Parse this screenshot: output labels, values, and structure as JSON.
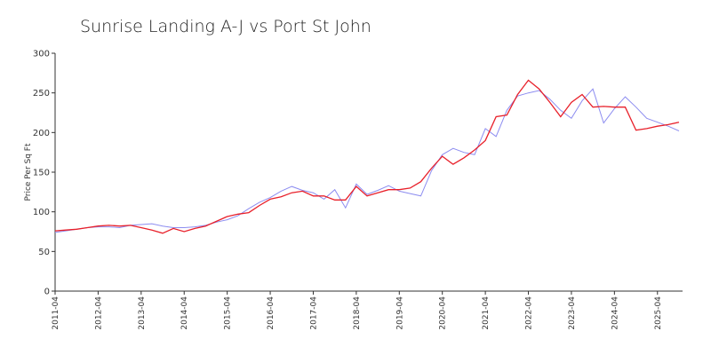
{
  "chart_data": {
    "type": "line",
    "title": "Sunrise Landing A-J vs Port St John",
    "y_label": "Price Per Sq Ft",
    "x": [
      "2011-04",
      "2011-07",
      "2011-10",
      "2012-01",
      "2012-04",
      "2012-07",
      "2012-10",
      "2013-01",
      "2013-04",
      "2013-07",
      "2013-10",
      "2014-01",
      "2014-04",
      "2014-07",
      "2014-10",
      "2015-01",
      "2015-04",
      "2015-07",
      "2015-10",
      "2016-01",
      "2016-04",
      "2016-07",
      "2016-10",
      "2017-01",
      "2017-04",
      "2017-07",
      "2017-10",
      "2018-01",
      "2018-04",
      "2018-07",
      "2018-10",
      "2019-01",
      "2019-04",
      "2019-07",
      "2019-10",
      "2020-01",
      "2020-04",
      "2020-07",
      "2020-10",
      "2021-01",
      "2021-04",
      "2021-07",
      "2021-10",
      "2022-01",
      "2022-04",
      "2022-07",
      "2022-10",
      "2023-01",
      "2023-04",
      "2023-07",
      "2023-10",
      "2024-01",
      "2024-04",
      "2024-07",
      "2024-10",
      "2025-01",
      "2025-04",
      "2025-07",
      "2025-10"
    ],
    "series": [
      {
        "color": "#8c8cf0",
        "values": [
          74,
          76,
          78,
          80,
          81,
          81,
          80,
          83,
          84,
          85,
          82,
          80,
          80,
          81,
          83,
          87,
          90,
          95,
          104,
          112,
          118,
          126,
          132,
          127,
          124,
          116,
          128,
          105,
          135,
          122,
          127,
          133,
          126,
          123,
          120,
          152,
          172,
          180,
          175,
          172,
          205,
          195,
          228,
          246,
          250,
          253,
          242,
          228,
          218,
          240,
          255,
          212,
          230,
          245,
          232,
          218,
          213,
          208,
          202
        ]
      },
      {
        "color": "#e8202a",
        "values": [
          76,
          77,
          78,
          80,
          82,
          83,
          82,
          83,
          80,
          77,
          73,
          79,
          75,
          79,
          82,
          88,
          94,
          97,
          99,
          108,
          116,
          119,
          124,
          126,
          120,
          120,
          115,
          115,
          132,
          120,
          124,
          128,
          128,
          130,
          138,
          155,
          170,
          160,
          168,
          178,
          190,
          220,
          222,
          248,
          266,
          255,
          238,
          220,
          238,
          248,
          232,
          233,
          232,
          232,
          203,
          205,
          208,
          210,
          213
        ]
      }
    ],
    "xlim": [
      "2011-04",
      "2025-11"
    ],
    "xticks": [
      "2011-04",
      "2012-04",
      "2013-04",
      "2014-04",
      "2015-04",
      "2016-04",
      "2017-04",
      "2018-04",
      "2019-04",
      "2020-04",
      "2021-04",
      "2022-04",
      "2023-04",
      "2024-04",
      "2025-04"
    ],
    "ylim": [
      0,
      300
    ],
    "yticks": [
      0,
      50,
      100,
      150,
      200,
      250,
      300
    ],
    "grid": false
  }
}
